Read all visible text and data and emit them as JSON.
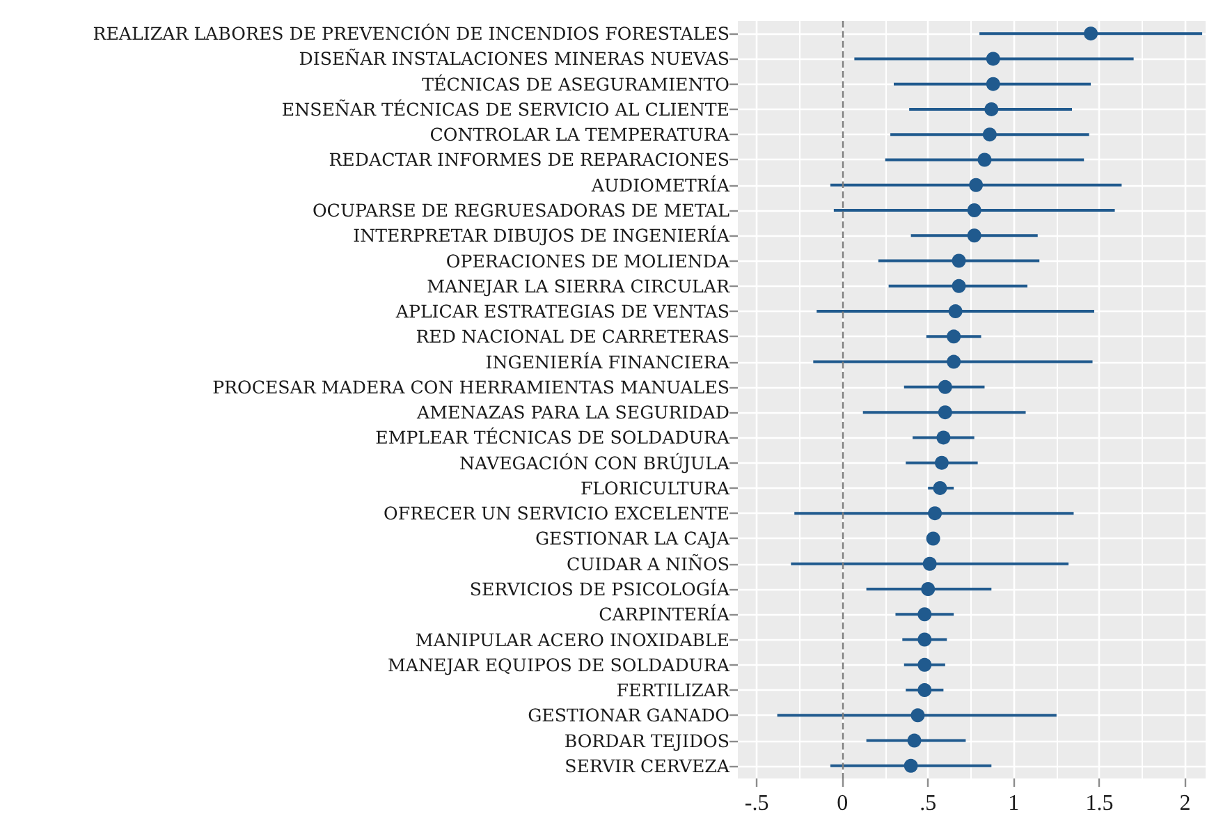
{
  "chart_data": {
    "type": "scatter",
    "orientation": "horizontal",
    "categories": [
      "REALIZAR LABORES DE PREVENCIÓN DE INCENDIOS FORESTALES",
      "DISEÑAR INSTALACIONES MINERAS NUEVAS",
      "TÉCNICAS DE ASEGURAMIENTO",
      "ENSEÑAR TÉCNICAS DE SERVICIO AL CLIENTE",
      "CONTROLAR LA TEMPERATURA",
      "REDACTAR INFORMES DE REPARACIONES",
      "AUDIOMETRÍA",
      "OCUPARSE DE REGRUESADORAS DE METAL",
      "INTERPRETAR DIBUJOS DE INGENIERÍA",
      "OPERACIONES DE MOLIENDA",
      "MANEJAR LA SIERRA CIRCULAR",
      "APLICAR ESTRATEGIAS DE VENTAS",
      "RED NACIONAL DE CARRETERAS",
      "INGENIERÍA FINANCIERA",
      "PROCESAR MADERA CON HERRAMIENTAS MANUALES",
      "AMENAZAS PARA LA SEGURIDAD",
      "EMPLEAR TÉCNICAS DE SOLDADURA",
      "NAVEGACIÓN CON BRÚJULA",
      "FLORICULTURA",
      "OFRECER UN SERVICIO EXCELENTE",
      "GESTIONAR LA CAJA",
      "CUIDAR A NIÑOS",
      "SERVICIOS DE PSICOLOGÍA",
      "CARPINTERÍA",
      "MANIPULAR ACERO INOXIDABLE",
      "MANEJAR EQUIPOS DE SOLDADURA",
      "FERTILIZAR",
      "GESTIONAR GANADO",
      "BORDAR TEJIDOS",
      "SERVIR CERVEZA"
    ],
    "values": [
      1.45,
      0.88,
      0.88,
      0.87,
      0.86,
      0.83,
      0.78,
      0.77,
      0.77,
      0.68,
      0.68,
      0.66,
      0.65,
      0.65,
      0.6,
      0.6,
      0.59,
      0.58,
      0.57,
      0.54,
      0.53,
      0.51,
      0.5,
      0.48,
      0.48,
      0.48,
      0.48,
      0.44,
      0.42,
      0.4
    ],
    "errors": [
      [
        0.8,
        2.1
      ],
      [
        0.07,
        1.7
      ],
      [
        0.3,
        1.45
      ],
      [
        0.39,
        1.34
      ],
      [
        0.28,
        1.44
      ],
      [
        0.25,
        1.41
      ],
      [
        -0.07,
        1.63
      ],
      [
        -0.05,
        1.59
      ],
      [
        0.4,
        1.14
      ],
      [
        0.21,
        1.15
      ],
      [
        0.27,
        1.08
      ],
      [
        -0.15,
        1.47
      ],
      [
        0.49,
        0.81
      ],
      [
        -0.17,
        1.46
      ],
      [
        0.36,
        0.83
      ],
      [
        0.12,
        1.07
      ],
      [
        0.41,
        0.77
      ],
      [
        0.37,
        0.79
      ],
      [
        0.5,
        0.65
      ],
      [
        -0.28,
        1.35
      ],
      null,
      [
        -0.3,
        1.32
      ],
      [
        0.14,
        0.87
      ],
      [
        0.31,
        0.65
      ],
      [
        0.35,
        0.61
      ],
      [
        0.36,
        0.6
      ],
      [
        0.37,
        0.59
      ],
      [
        -0.38,
        1.25
      ],
      [
        0.14,
        0.72
      ],
      [
        -0.07,
        0.87
      ]
    ],
    "color": "#205a8e",
    "marker": "circle",
    "xlim": [
      -0.61,
      2.12
    ],
    "xticks": [
      {
        "value": -0.5,
        "label": "-.5"
      },
      {
        "value": -0.25,
        "label": null
      },
      0,
      {
        "value": 0.25,
        "label": null
      },
      {
        "value": 0.5,
        "label": ".5"
      },
      {
        "value": 0.75,
        "label": null
      },
      1,
      {
        "value": 1.25,
        "label": null
      },
      1.5,
      {
        "value": 1.75,
        "label": null
      },
      2
    ],
    "ref_lines": [
      {
        "axis": "x",
        "value": 0,
        "line_style": "dashed",
        "color": "#7f7f7f"
      }
    ],
    "grid": true
  }
}
